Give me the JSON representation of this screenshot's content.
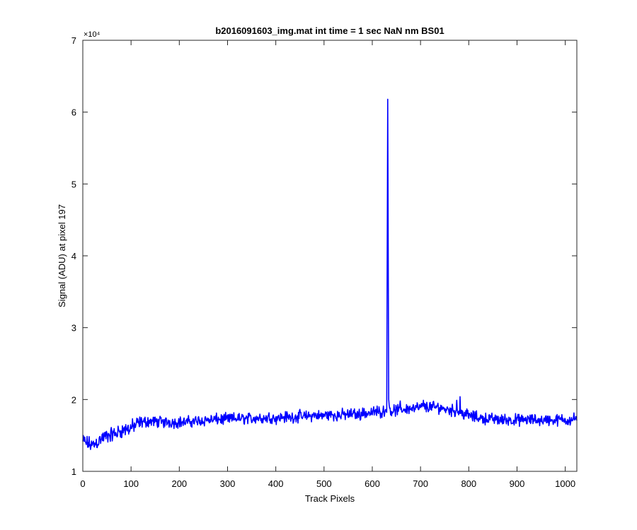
{
  "chart_data": {
    "type": "line",
    "title": "b2016091603_img.mat int time = 1 sec  NaN nm BS01",
    "xlabel": "Track Pixels",
    "ylabel": "Signal (ADU) at pixel 197",
    "y_exponent": "×10⁴",
    "xlim": [
      0,
      1024
    ],
    "ylim": [
      10000,
      70000
    ],
    "x_ticks": [
      0,
      100,
      200,
      300,
      400,
      500,
      600,
      700,
      800,
      900,
      1000
    ],
    "y_ticks": [
      10000,
      20000,
      30000,
      40000,
      50000,
      60000,
      70000
    ],
    "y_tick_labels": [
      "1",
      "2",
      "3",
      "4",
      "5",
      "6",
      "7"
    ],
    "grid": false,
    "line_color": "#0000ff",
    "series": [
      {
        "points": [
          [
            0,
            14200
          ],
          [
            10,
            13900
          ],
          [
            20,
            13600
          ],
          [
            30,
            14100
          ],
          [
            40,
            14600
          ],
          [
            50,
            14900
          ],
          [
            60,
            15100
          ],
          [
            70,
            15300
          ],
          [
            80,
            15700
          ],
          [
            90,
            15800
          ],
          [
            100,
            16100
          ],
          [
            110,
            16400
          ],
          [
            120,
            16800
          ],
          [
            130,
            16900
          ],
          [
            140,
            17000
          ],
          [
            150,
            16900
          ],
          [
            160,
            16900
          ],
          [
            170,
            16800
          ],
          [
            180,
            16900
          ],
          [
            190,
            16800
          ],
          [
            200,
            16900
          ],
          [
            210,
            16800
          ],
          [
            220,
            16900
          ],
          [
            230,
            17000
          ],
          [
            240,
            17000
          ],
          [
            250,
            17100
          ],
          [
            260,
            17200
          ],
          [
            270,
            17100
          ],
          [
            280,
            17300
          ],
          [
            290,
            17200
          ],
          [
            300,
            17300
          ],
          [
            310,
            17300
          ],
          [
            320,
            17400
          ],
          [
            330,
            17300
          ],
          [
            340,
            17400
          ],
          [
            350,
            17300
          ],
          [
            360,
            17500
          ],
          [
            370,
            17400
          ],
          [
            380,
            17400
          ],
          [
            390,
            17600
          ],
          [
            400,
            17400
          ],
          [
            410,
            17500
          ],
          [
            420,
            17600
          ],
          [
            430,
            17500
          ],
          [
            440,
            17600
          ],
          [
            450,
            17700
          ],
          [
            460,
            17600
          ],
          [
            470,
            17700
          ],
          [
            480,
            17800
          ],
          [
            490,
            17700
          ],
          [
            500,
            17800
          ],
          [
            510,
            17900
          ],
          [
            520,
            17800
          ],
          [
            530,
            17800
          ],
          [
            540,
            17900
          ],
          [
            550,
            17900
          ],
          [
            560,
            18000
          ],
          [
            570,
            17900
          ],
          [
            580,
            18100
          ],
          [
            590,
            18100
          ],
          [
            600,
            18200
          ],
          [
            610,
            18300
          ],
          [
            620,
            18300
          ],
          [
            628,
            18600
          ],
          [
            630,
            19000
          ],
          [
            632,
            61800
          ],
          [
            634,
            19200
          ],
          [
            640,
            18400
          ],
          [
            650,
            18500
          ],
          [
            660,
            18600
          ],
          [
            670,
            18700
          ],
          [
            680,
            18800
          ],
          [
            690,
            18800
          ],
          [
            700,
            18900
          ],
          [
            710,
            18900
          ],
          [
            720,
            19000
          ],
          [
            730,
            18900
          ],
          [
            740,
            18900
          ],
          [
            750,
            18700
          ],
          [
            760,
            18600
          ],
          [
            770,
            18400
          ],
          [
            780,
            18300
          ],
          [
            790,
            18000
          ],
          [
            800,
            17800
          ],
          [
            810,
            17600
          ],
          [
            820,
            17500
          ],
          [
            830,
            17400
          ],
          [
            840,
            17300
          ],
          [
            850,
            17300
          ],
          [
            860,
            17200
          ],
          [
            870,
            17200
          ],
          [
            880,
            17200
          ],
          [
            890,
            17100
          ],
          [
            900,
            17200
          ],
          [
            910,
            17100
          ],
          [
            920,
            17200
          ],
          [
            930,
            17100
          ],
          [
            940,
            17200
          ],
          [
            950,
            17100
          ],
          [
            960,
            17200
          ],
          [
            970,
            17100
          ],
          [
            980,
            17100
          ],
          [
            990,
            17200
          ],
          [
            1000,
            17200
          ],
          [
            1010,
            17200
          ],
          [
            1024,
            17400
          ]
        ]
      }
    ]
  }
}
